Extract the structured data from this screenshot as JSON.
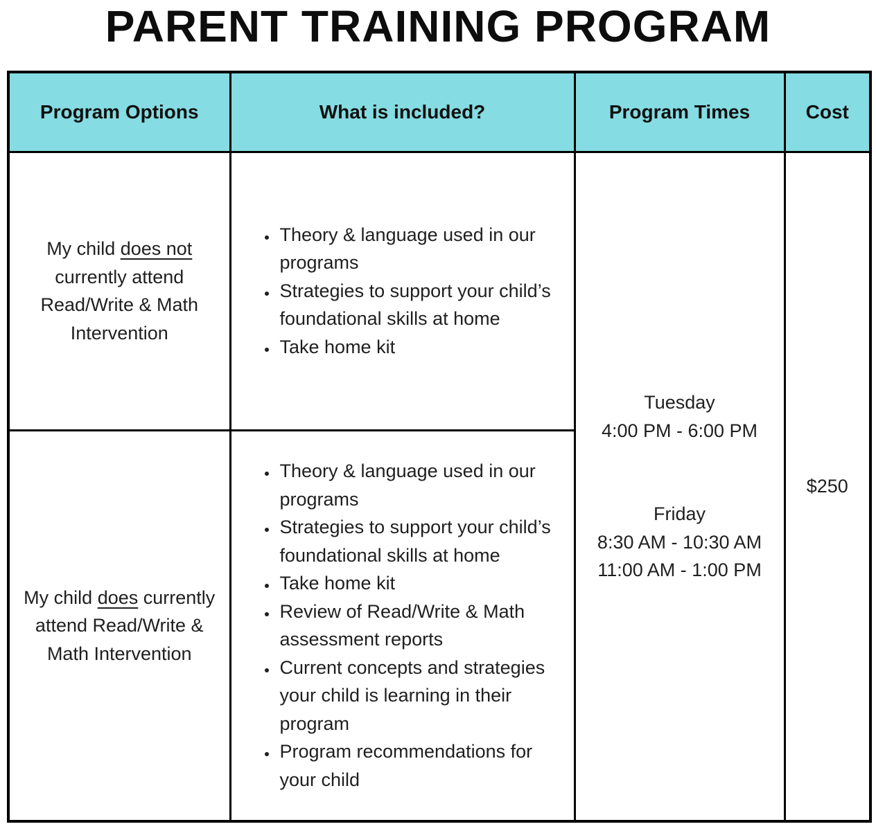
{
  "page_title": "PARENT TRAINING PROGRAM",
  "colors": {
    "header_bg": "#85DCE2",
    "border_color": "#000000",
    "text_color": "#1f1f1f"
  },
  "table": {
    "headers": {
      "program_options": "Program Options",
      "included": "What is included?",
      "times": "Program Times",
      "cost": "Cost"
    },
    "rows": [
      {
        "option": {
          "prefix": "My child ",
          "underlined": "does not",
          "suffix": " currently attend Read/Write & Math Intervention"
        },
        "included": [
          "Theory & language used in our programs",
          "Strategies to support your child’s foundational skills at home",
          "Take home kit"
        ]
      },
      {
        "option": {
          "prefix": "My child ",
          "underlined": "does",
          "suffix": " currently attend Read/Write & Math Intervention"
        },
        "included": [
          "Theory & language used in our programs",
          "Strategies to support your child’s foundational skills at home",
          "Take home kit",
          "Review of Read/Write & Math assessment reports",
          "Current concepts and strategies your child is learning in their program",
          "Program recommendations for your child"
        ]
      }
    ],
    "program_times": {
      "sessions": [
        {
          "day": "Tuesday",
          "slots": [
            "4:00 PM - 6:00 PM"
          ]
        },
        {
          "day": "Friday",
          "slots": [
            "8:30 AM - 10:30 AM",
            "11:00 AM - 1:00 PM"
          ]
        }
      ]
    },
    "cost": "$250"
  }
}
